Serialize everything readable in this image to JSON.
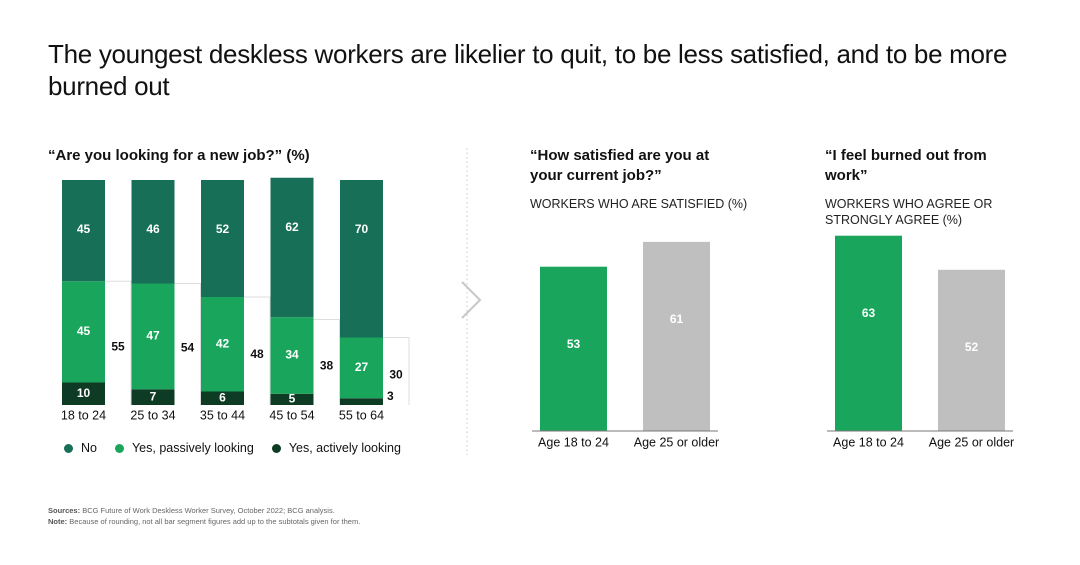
{
  "title": "The youngest deskless workers are likelier to quit, to be less satisfied, and to be more burned out",
  "colors": {
    "no": "#166f56",
    "passive": "#19a65c",
    "active": "#0d3b23",
    "young": "#19a65c",
    "older": "#bfbfbf",
    "separator": "#c8c8c8"
  },
  "legend": {
    "no": "No",
    "passive": "Yes, passively looking",
    "active": "Yes, actively looking"
  },
  "charts": {
    "job_search": {
      "title": "“Are you looking for a new job?” (%)"
    },
    "satisfied": {
      "title": "“How satisfied are you at your current job?”",
      "subtitle": "WORKERS WHO ARE SATISFIED (%)"
    },
    "burnout": {
      "title": "“I feel burned out from work”",
      "subtitle": "WORKERS WHO AGREE OR STRONGLY AGREE (%)"
    }
  },
  "sources": {
    "sources_label": "Sources:",
    "sources_text": "BCG Future of Work Deskless Worker Survey, October 2022; BCG analysis.",
    "note_label": "Note:",
    "note_text": "Because of rounding, not all bar segment figures add up to the subtotals given for them."
  },
  "chart_data": [
    {
      "type": "bar",
      "stacked": true,
      "title": "“Are you looking for a new job?” (%)",
      "categories": [
        "18 to 24",
        "25 to 34",
        "35 to 44",
        "45 to 54",
        "55 to 64"
      ],
      "series": [
        {
          "name": "Yes, actively looking",
          "values": [
            10,
            7,
            6,
            5,
            3
          ]
        },
        {
          "name": "Yes, passively looking",
          "values": [
            45,
            47,
            42,
            34,
            27
          ]
        },
        {
          "name": "No",
          "values": [
            45,
            46,
            52,
            62,
            70
          ]
        }
      ],
      "subtotals": [
        55,
        54,
        48,
        38,
        30
      ],
      "ylim": [
        0,
        100
      ]
    },
    {
      "type": "bar",
      "title": "“How satisfied are you at your current job?”",
      "subtitle": "WORKERS WHO ARE SATISFIED (%)",
      "categories": [
        "Age 18 to 24",
        "Age 25 or older"
      ],
      "values": [
        53,
        61
      ]
    },
    {
      "type": "bar",
      "title": "“I feel burned out from work”",
      "subtitle": "WORKERS WHO AGREE OR STRONGLY AGREE (%)",
      "categories": [
        "Age 18 to 24",
        "Age 25 or older"
      ],
      "values": [
        63,
        52
      ]
    }
  ]
}
